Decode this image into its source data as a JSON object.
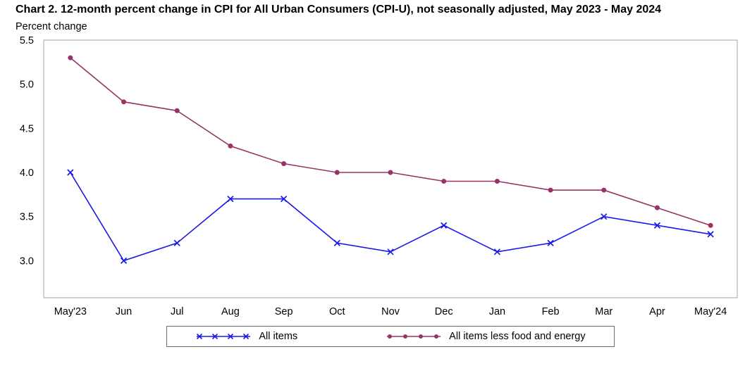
{
  "chart_data": {
    "type": "line",
    "title": "Chart 2. 12-month percent change in CPI for All Urban Consumers (CPI-U), not seasonally adjusted, May 2023 - May 2024",
    "ylabel": "Percent change",
    "xlabel": "",
    "categories": [
      "May'23",
      "Jun",
      "Jul",
      "Aug",
      "Sep",
      "Oct",
      "Nov",
      "Dec",
      "Jan",
      "Feb",
      "Mar",
      "Apr",
      "May'24"
    ],
    "series": [
      {
        "name": "All items",
        "marker": "x",
        "color": "#1a1ae6",
        "values": [
          4.0,
          3.0,
          3.2,
          3.7,
          3.7,
          3.2,
          3.1,
          3.4,
          3.1,
          3.2,
          3.5,
          3.4,
          3.3
        ]
      },
      {
        "name": "All items less food and energy",
        "marker": "circle",
        "color": "#993366",
        "values": [
          5.3,
          4.8,
          4.7,
          4.3,
          4.1,
          4.0,
          4.0,
          3.9,
          3.9,
          3.8,
          3.8,
          3.6,
          3.4
        ]
      }
    ],
    "ylim": [
      2.58,
      5.5
    ],
    "yticks": [
      3.0,
      3.5,
      4.0,
      4.5,
      5.0,
      5.5
    ],
    "grid": false,
    "legend_position": "bottom",
    "frame_color": "#a6a6a6"
  }
}
